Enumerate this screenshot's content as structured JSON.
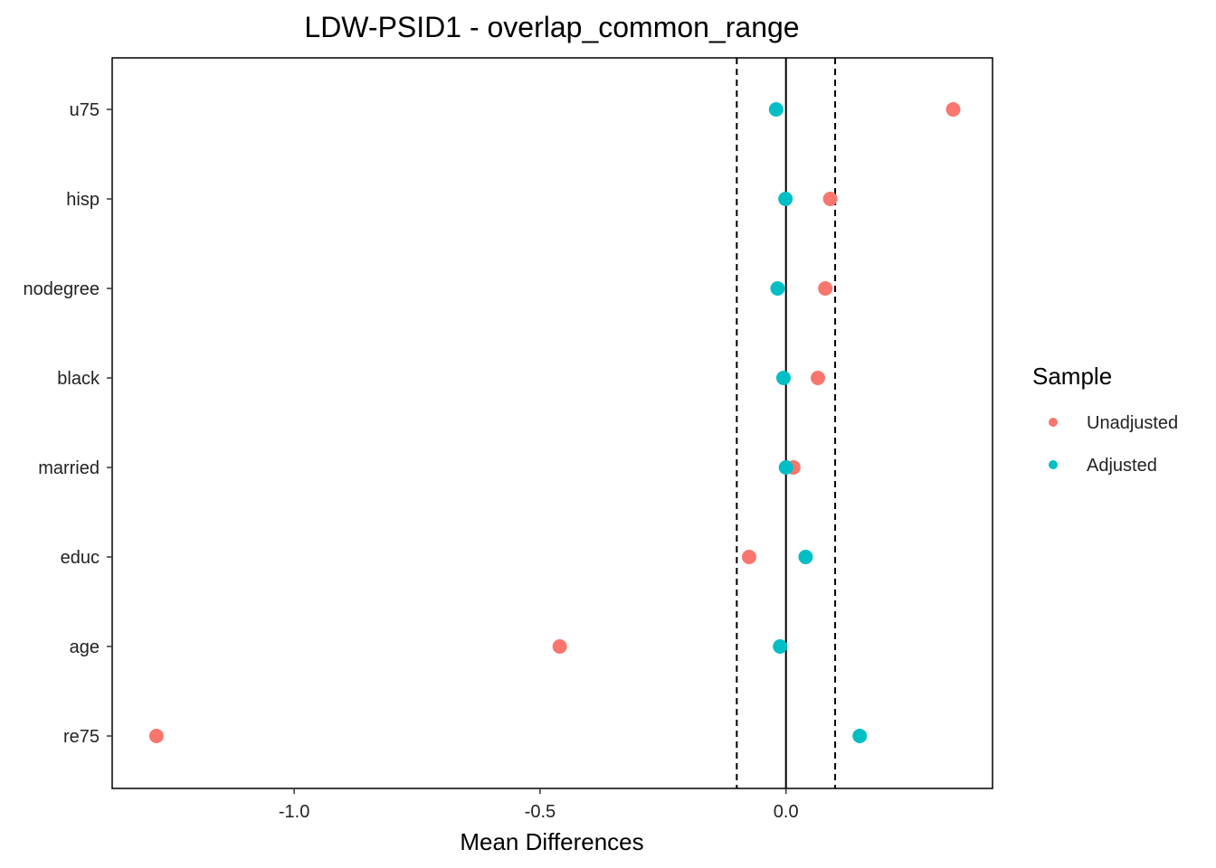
{
  "chart_data": {
    "type": "scatter",
    "title": "LDW-PSID1 - overlap_common_range",
    "xlabel": "Mean Differences",
    "ylabel": "",
    "xlim": [
      -1.37,
      0.42
    ],
    "x_ticks": [
      -1.0,
      -0.5,
      0.0
    ],
    "x_tick_labels": [
      "-1.0",
      "-0.5",
      "0.0"
    ],
    "categories": [
      "re75",
      "age",
      "educ",
      "married",
      "black",
      "nodegree",
      "hisp",
      "u75"
    ],
    "reference_lines": {
      "solid": 0.0,
      "dashed": [
        -0.1,
        0.1
      ]
    },
    "grid": false,
    "legend": {
      "title": "Sample",
      "placement": "right",
      "entries": [
        "Unadjusted",
        "Adjusted"
      ]
    },
    "series": [
      {
        "name": "Unadjusted",
        "color": "#F8766D",
        "values": [
          -1.28,
          -0.46,
          -0.075,
          0.015,
          0.065,
          0.08,
          0.09,
          0.34
        ]
      },
      {
        "name": "Adjusted",
        "color": "#00BFC4",
        "values": [
          0.15,
          -0.012,
          0.04,
          0.0,
          -0.005,
          -0.017,
          -0.001,
          -0.02
        ]
      }
    ]
  }
}
